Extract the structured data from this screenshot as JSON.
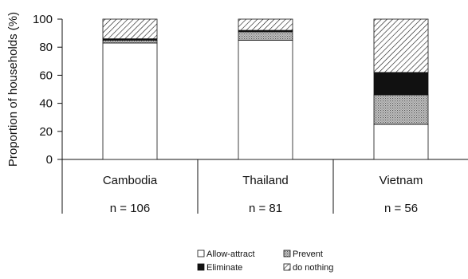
{
  "chart_data": {
    "type": "bar",
    "stacked": true,
    "title": "",
    "xlabel": "",
    "ylabel": "Proportion of households (%)",
    "ylim": [
      0,
      100
    ],
    "yticks": [
      "0",
      "20",
      "40",
      "60",
      "80",
      "100"
    ],
    "grid": false,
    "legend_position": "bottom-right",
    "categories": [
      "Cambodia",
      "Thailand",
      "Vietnam"
    ],
    "sample_sizes": [
      "n = 106",
      "n = 81",
      "n = 56"
    ],
    "series": [
      {
        "name": "Allow-attract",
        "values": [
          83,
          85,
          25
        ],
        "fill": "white",
        "color": "#ffffff"
      },
      {
        "name": "Prevent",
        "values": [
          2,
          6,
          21
        ],
        "fill": "dots",
        "color": "#9a9a9a"
      },
      {
        "name": "Eliminate",
        "values": [
          1,
          1,
          16
        ],
        "fill": "solid",
        "color": "#111111"
      },
      {
        "name": "do nothing",
        "values": [
          14,
          8,
          38
        ],
        "fill": "hatch",
        "color": "#111111"
      }
    ]
  }
}
